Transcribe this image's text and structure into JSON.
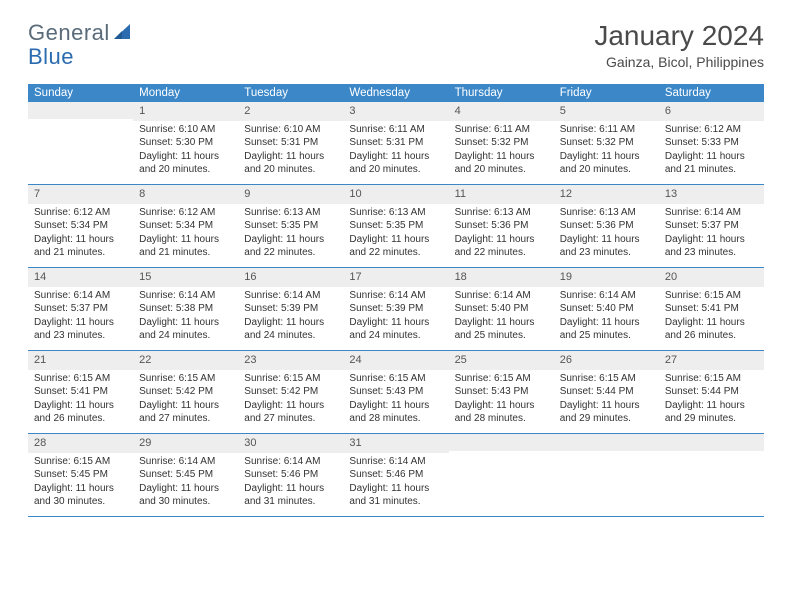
{
  "logo": {
    "text1": "General",
    "text2": "Blue"
  },
  "title": "January 2024",
  "location": "Gainza, Bicol, Philippines",
  "weekdays": [
    "Sunday",
    "Monday",
    "Tuesday",
    "Wednesday",
    "Thursday",
    "Friday",
    "Saturday"
  ],
  "colors": {
    "header_bg": "#3b87c8",
    "header_text": "#ffffff",
    "daynum_bg": "#eeeeee",
    "row_border": "#3b87c8",
    "logo_blue": "#2b6bb0",
    "logo_gray": "#5a6b7a"
  },
  "weeks": [
    [
      {
        "n": "",
        "sr": "",
        "ss": "",
        "dl": ""
      },
      {
        "n": "1",
        "sr": "Sunrise: 6:10 AM",
        "ss": "Sunset: 5:30 PM",
        "dl": "Daylight: 11 hours and 20 minutes."
      },
      {
        "n": "2",
        "sr": "Sunrise: 6:10 AM",
        "ss": "Sunset: 5:31 PM",
        "dl": "Daylight: 11 hours and 20 minutes."
      },
      {
        "n": "3",
        "sr": "Sunrise: 6:11 AM",
        "ss": "Sunset: 5:31 PM",
        "dl": "Daylight: 11 hours and 20 minutes."
      },
      {
        "n": "4",
        "sr": "Sunrise: 6:11 AM",
        "ss": "Sunset: 5:32 PM",
        "dl": "Daylight: 11 hours and 20 minutes."
      },
      {
        "n": "5",
        "sr": "Sunrise: 6:11 AM",
        "ss": "Sunset: 5:32 PM",
        "dl": "Daylight: 11 hours and 20 minutes."
      },
      {
        "n": "6",
        "sr": "Sunrise: 6:12 AM",
        "ss": "Sunset: 5:33 PM",
        "dl": "Daylight: 11 hours and 21 minutes."
      }
    ],
    [
      {
        "n": "7",
        "sr": "Sunrise: 6:12 AM",
        "ss": "Sunset: 5:34 PM",
        "dl": "Daylight: 11 hours and 21 minutes."
      },
      {
        "n": "8",
        "sr": "Sunrise: 6:12 AM",
        "ss": "Sunset: 5:34 PM",
        "dl": "Daylight: 11 hours and 21 minutes."
      },
      {
        "n": "9",
        "sr": "Sunrise: 6:13 AM",
        "ss": "Sunset: 5:35 PM",
        "dl": "Daylight: 11 hours and 22 minutes."
      },
      {
        "n": "10",
        "sr": "Sunrise: 6:13 AM",
        "ss": "Sunset: 5:35 PM",
        "dl": "Daylight: 11 hours and 22 minutes."
      },
      {
        "n": "11",
        "sr": "Sunrise: 6:13 AM",
        "ss": "Sunset: 5:36 PM",
        "dl": "Daylight: 11 hours and 22 minutes."
      },
      {
        "n": "12",
        "sr": "Sunrise: 6:13 AM",
        "ss": "Sunset: 5:36 PM",
        "dl": "Daylight: 11 hours and 23 minutes."
      },
      {
        "n": "13",
        "sr": "Sunrise: 6:14 AM",
        "ss": "Sunset: 5:37 PM",
        "dl": "Daylight: 11 hours and 23 minutes."
      }
    ],
    [
      {
        "n": "14",
        "sr": "Sunrise: 6:14 AM",
        "ss": "Sunset: 5:37 PM",
        "dl": "Daylight: 11 hours and 23 minutes."
      },
      {
        "n": "15",
        "sr": "Sunrise: 6:14 AM",
        "ss": "Sunset: 5:38 PM",
        "dl": "Daylight: 11 hours and 24 minutes."
      },
      {
        "n": "16",
        "sr": "Sunrise: 6:14 AM",
        "ss": "Sunset: 5:39 PM",
        "dl": "Daylight: 11 hours and 24 minutes."
      },
      {
        "n": "17",
        "sr": "Sunrise: 6:14 AM",
        "ss": "Sunset: 5:39 PM",
        "dl": "Daylight: 11 hours and 24 minutes."
      },
      {
        "n": "18",
        "sr": "Sunrise: 6:14 AM",
        "ss": "Sunset: 5:40 PM",
        "dl": "Daylight: 11 hours and 25 minutes."
      },
      {
        "n": "19",
        "sr": "Sunrise: 6:14 AM",
        "ss": "Sunset: 5:40 PM",
        "dl": "Daylight: 11 hours and 25 minutes."
      },
      {
        "n": "20",
        "sr": "Sunrise: 6:15 AM",
        "ss": "Sunset: 5:41 PM",
        "dl": "Daylight: 11 hours and 26 minutes."
      }
    ],
    [
      {
        "n": "21",
        "sr": "Sunrise: 6:15 AM",
        "ss": "Sunset: 5:41 PM",
        "dl": "Daylight: 11 hours and 26 minutes."
      },
      {
        "n": "22",
        "sr": "Sunrise: 6:15 AM",
        "ss": "Sunset: 5:42 PM",
        "dl": "Daylight: 11 hours and 27 minutes."
      },
      {
        "n": "23",
        "sr": "Sunrise: 6:15 AM",
        "ss": "Sunset: 5:42 PM",
        "dl": "Daylight: 11 hours and 27 minutes."
      },
      {
        "n": "24",
        "sr": "Sunrise: 6:15 AM",
        "ss": "Sunset: 5:43 PM",
        "dl": "Daylight: 11 hours and 28 minutes."
      },
      {
        "n": "25",
        "sr": "Sunrise: 6:15 AM",
        "ss": "Sunset: 5:43 PM",
        "dl": "Daylight: 11 hours and 28 minutes."
      },
      {
        "n": "26",
        "sr": "Sunrise: 6:15 AM",
        "ss": "Sunset: 5:44 PM",
        "dl": "Daylight: 11 hours and 29 minutes."
      },
      {
        "n": "27",
        "sr": "Sunrise: 6:15 AM",
        "ss": "Sunset: 5:44 PM",
        "dl": "Daylight: 11 hours and 29 minutes."
      }
    ],
    [
      {
        "n": "28",
        "sr": "Sunrise: 6:15 AM",
        "ss": "Sunset: 5:45 PM",
        "dl": "Daylight: 11 hours and 30 minutes."
      },
      {
        "n": "29",
        "sr": "Sunrise: 6:14 AM",
        "ss": "Sunset: 5:45 PM",
        "dl": "Daylight: 11 hours and 30 minutes."
      },
      {
        "n": "30",
        "sr": "Sunrise: 6:14 AM",
        "ss": "Sunset: 5:46 PM",
        "dl": "Daylight: 11 hours and 31 minutes."
      },
      {
        "n": "31",
        "sr": "Sunrise: 6:14 AM",
        "ss": "Sunset: 5:46 PM",
        "dl": "Daylight: 11 hours and 31 minutes."
      },
      {
        "n": "",
        "sr": "",
        "ss": "",
        "dl": ""
      },
      {
        "n": "",
        "sr": "",
        "ss": "",
        "dl": ""
      },
      {
        "n": "",
        "sr": "",
        "ss": "",
        "dl": ""
      }
    ]
  ]
}
